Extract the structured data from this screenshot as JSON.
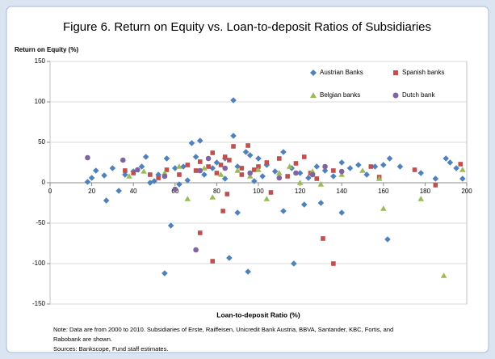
{
  "chart_data": {
    "type": "scatter",
    "title": "Figure 6. Return on Equity vs. Loan-to-deposit Ratios of Subsidiaries",
    "ylabel": "Return on Equity (%)",
    "xlabel": "Loan-to-deposit Ratio (%)",
    "notes": [
      "Note: Data are from 2000 to 2010. Subsidiaries of Erste, Raiffeisen,  Unicredit Bank Austria, BBVA, Santander, KBC, Fortis, and",
      "Rabobank are shown.",
      "Sources: Bankscope, Fund staff estimates."
    ],
    "xlim": [
      0,
      200
    ],
    "xticks": [
      0,
      20,
      40,
      60,
      80,
      100,
      120,
      140,
      160,
      180,
      200
    ],
    "ylim": [
      -150,
      150
    ],
    "yticks": [
      -150,
      -100,
      -50,
      0,
      50,
      100,
      150
    ],
    "grid": true,
    "legend": "top-right",
    "series": [
      {
        "name": "Austrian Banks",
        "color": "#4f81bd",
        "marker": "diamond",
        "x": [
          88,
          55,
          95,
          86,
          117,
          162,
          58,
          140,
          112,
          90,
          122,
          130,
          27,
          33,
          18,
          20,
          22,
          26,
          30,
          36,
          40,
          44,
          46,
          50,
          52,
          56,
          60,
          64,
          68,
          70,
          72,
          74,
          78,
          80,
          84,
          88,
          90,
          94,
          96,
          100,
          104,
          108,
          112,
          116,
          120,
          124,
          128,
          132,
          136,
          140,
          144,
          148,
          152,
          156,
          160,
          163,
          168,
          178,
          185,
          190,
          192,
          195,
          198,
          102,
          84,
          66,
          62,
          98,
          48
        ],
        "values": [
          102,
          -112,
          -110,
          -93,
          -100,
          -70,
          -53,
          -37,
          -35,
          -37,
          -27,
          -25,
          -22,
          -10,
          1,
          6,
          15,
          9,
          18,
          10,
          14,
          20,
          32,
          2,
          10,
          30,
          18,
          20,
          49,
          32,
          52,
          10,
          18,
          25,
          30,
          58,
          20,
          38,
          34,
          30,
          22,
          14,
          38,
          18,
          12,
          6,
          20,
          15,
          8,
          25,
          18,
          22,
          10,
          20,
          22,
          30,
          20,
          12,
          5,
          30,
          25,
          18,
          5,
          8,
          5,
          3,
          -2,
          2,
          0
        ]
      },
      {
        "name": "Spanish banks",
        "color": "#c0504d",
        "marker": "square",
        "x": [
          72,
          78,
          136,
          131,
          83,
          85,
          185,
          197,
          175,
          158,
          154,
          136,
          125,
          122,
          118,
          110,
          104,
          98,
          95,
          92,
          88,
          86,
          84,
          82,
          80,
          78,
          76,
          72,
          70,
          66,
          62,
          56,
          52,
          48,
          40,
          36,
          92,
          100,
          106,
          114,
          128
        ],
        "values": [
          -62,
          -97,
          -100,
          -69,
          -35,
          -14,
          -3,
          23,
          16,
          7,
          20,
          15,
          12,
          32,
          24,
          30,
          25,
          16,
          46,
          18,
          45,
          28,
          32,
          22,
          12,
          37,
          20,
          26,
          15,
          22,
          10,
          16,
          6,
          10,
          12,
          15,
          10,
          20,
          -12,
          8,
          5
        ]
      },
      {
        "name": "Belgian banks",
        "color": "#9bbb59",
        "marker": "triangle",
        "x": [
          189,
          160,
          178,
          104,
          66,
          78,
          198,
          158,
          150,
          130,
          120,
          110,
          96,
          90,
          82,
          74,
          62,
          55,
          45,
          38,
          100,
          115,
          140,
          126
        ],
        "values": [
          -115,
          -32,
          -20,
          -20,
          -20,
          -18,
          16,
          5,
          15,
          -2,
          0,
          12,
          8,
          15,
          10,
          18,
          20,
          12,
          14,
          8,
          16,
          20,
          10,
          14
        ]
      },
      {
        "name": "Dutch bank",
        "color": "#8064a2",
        "marker": "circle",
        "x": [
          18,
          35,
          70,
          55,
          60,
          72,
          84,
          96,
          110,
          126,
          140,
          132,
          76,
          42,
          118
        ],
        "values": [
          31,
          28,
          -83,
          8,
          -8,
          15,
          18,
          12,
          6,
          10,
          14,
          20,
          30,
          16,
          12
        ]
      }
    ]
  }
}
